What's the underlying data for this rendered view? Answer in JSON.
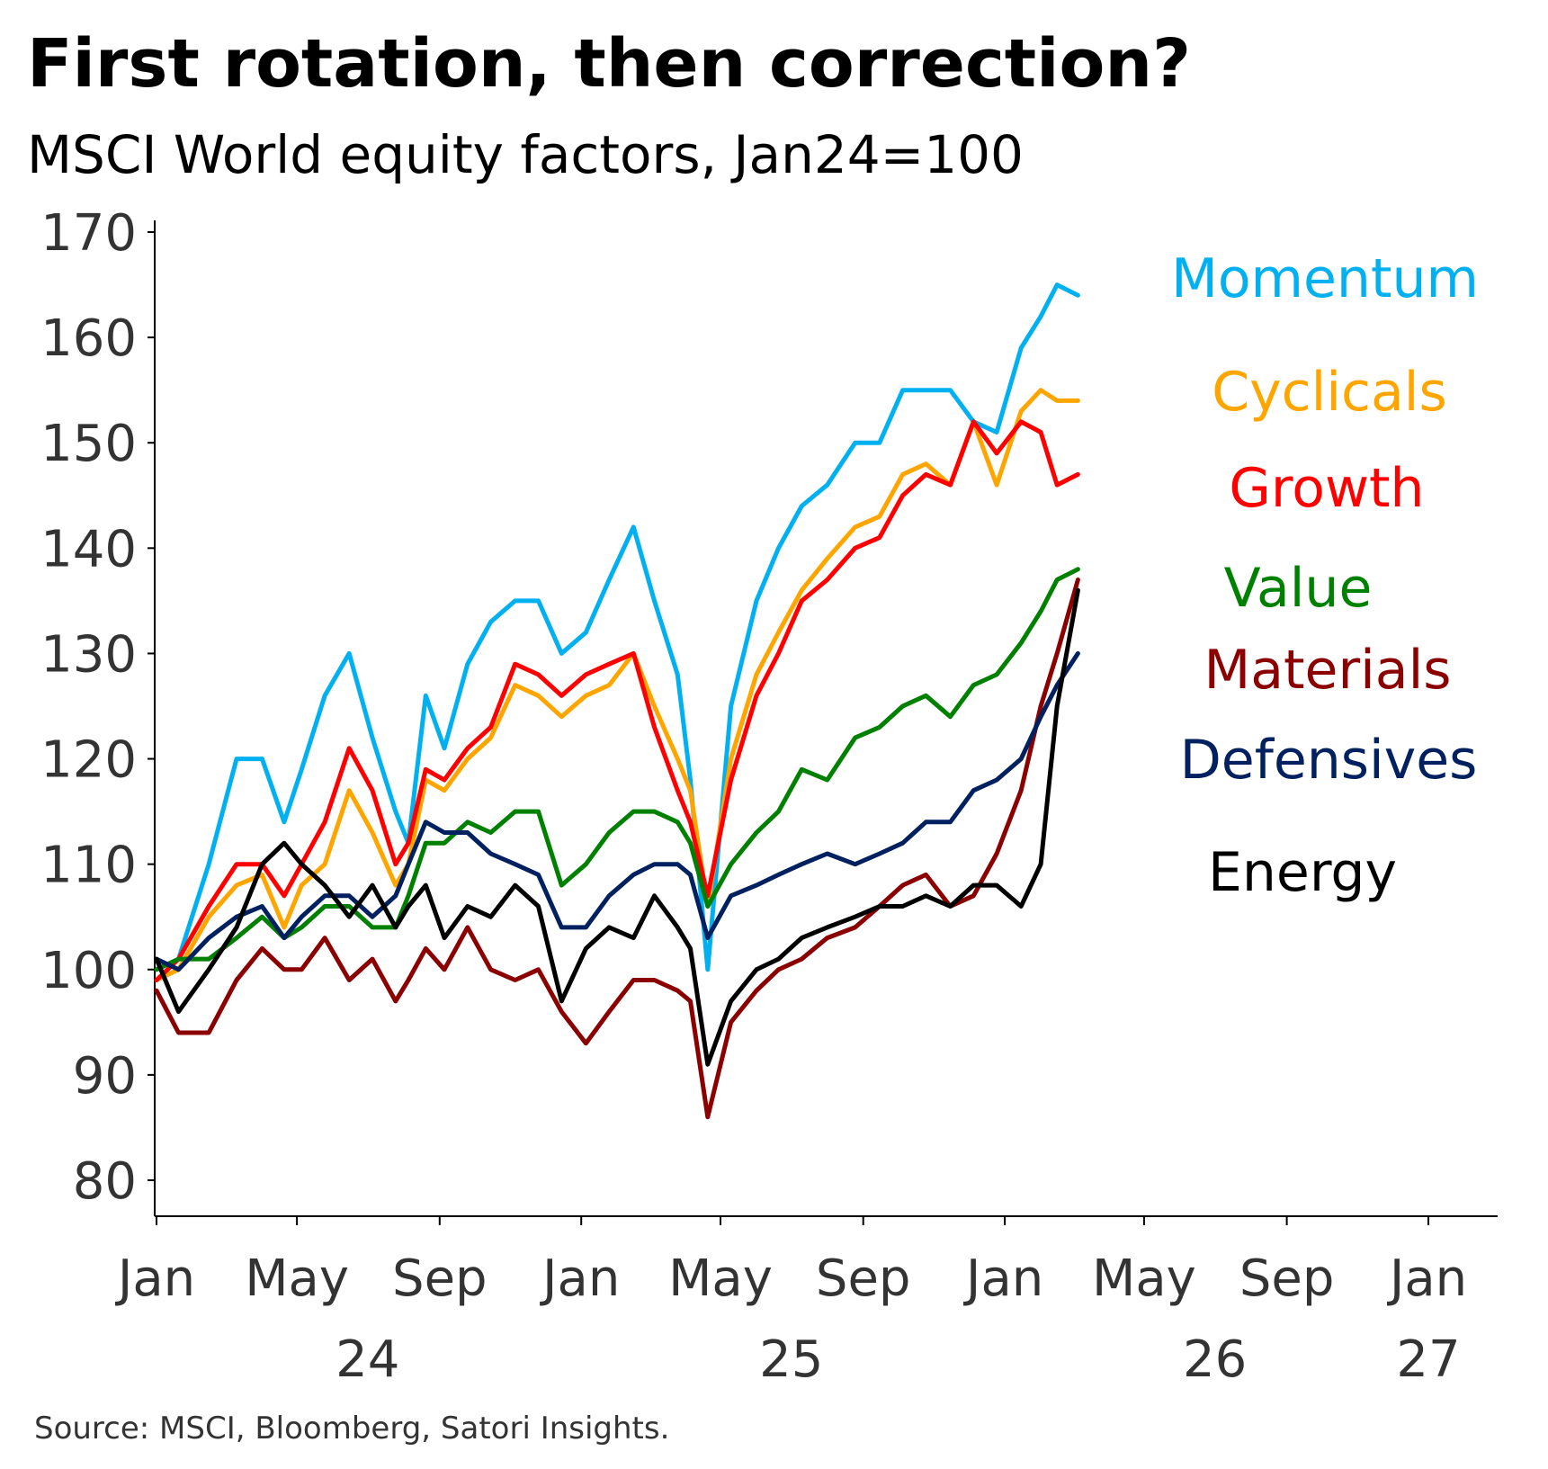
{
  "title": "First rotation, then correction?",
  "subtitle": "MSCI World equity factors, Jan24=100",
  "source": "Source: MSCI, Bloomberg, Satori Insights.",
  "chart_data": {
    "type": "line",
    "title": "First rotation, then correction?",
    "subtitle": "MSCI World equity factors, Jan24=100",
    "x_unit": "month",
    "x_range": [
      "2024-01",
      "2027-01"
    ],
    "ylim": [
      80,
      170
    ],
    "yticks": [
      170,
      160,
      150,
      140,
      130,
      120,
      110,
      100,
      90,
      80
    ],
    "ytick_labels": [
      "170",
      "160",
      "150",
      "140",
      "130",
      "120",
      "110",
      "100",
      "90",
      "80"
    ],
    "xticks": [
      "2024-01",
      "2024-05",
      "2024-09",
      "2025-01",
      "2025-05",
      "2025-09",
      "2026-01",
      "2026-05",
      "2026-09",
      "2027-01"
    ],
    "xtick_labels": [
      "Jan",
      "May",
      "Sep",
      "Jan",
      "May",
      "Sep",
      "Jan",
      "May",
      "Sep",
      "Jan"
    ],
    "year_labels": [
      {
        "label": "24",
        "at": "2024-07"
      },
      {
        "label": "25",
        "at": "2025-07"
      },
      {
        "label": "26",
        "at": "2026-07"
      },
      {
        "label": "27",
        "at": "2027-01"
      }
    ],
    "grid": false,
    "legend": "right, inline labels",
    "series": [
      {
        "name": "Momentum",
        "color": "#00b0f0",
        "x": [
          "2024-01-01",
          "2024-01-20",
          "2024-02-15",
          "2024-03-10",
          "2024-04-01",
          "2024-04-20",
          "2024-05-05",
          "2024-05-25",
          "2024-06-15",
          "2024-07-05",
          "2024-07-25",
          "2024-08-05",
          "2024-08-20",
          "2024-09-05",
          "2024-09-25",
          "2024-10-15",
          "2024-11-05",
          "2024-11-25",
          "2024-12-15",
          "2025-01-05",
          "2025-01-25",
          "2025-02-15",
          "2025-03-05",
          "2025-03-25",
          "2025-04-05",
          "2025-04-20",
          "2025-05-10",
          "2025-06-01",
          "2025-06-20",
          "2025-07-10",
          "2025-08-01",
          "2025-08-25",
          "2025-09-15",
          "2025-10-05",
          "2025-10-25",
          "2025-11-15",
          "2025-12-05",
          "2025-12-25",
          "2026-01-15",
          "2026-02-01",
          "2026-02-15",
          "2026-03-05"
        ],
        "values": [
          100,
          101,
          110,
          120,
          120,
          114,
          119,
          126,
          130,
          122,
          115,
          112,
          126,
          121,
          129,
          133,
          135,
          135,
          130,
          132,
          137,
          142,
          135,
          128,
          118,
          100,
          125,
          135,
          140,
          144,
          146,
          150,
          150,
          155,
          155,
          155,
          152,
          151,
          159,
          162,
          165,
          164
        ]
      },
      {
        "name": "Cyclicals",
        "color": "#ffa500",
        "x": [
          "2024-01-01",
          "2024-01-20",
          "2024-02-15",
          "2024-03-10",
          "2024-04-01",
          "2024-04-20",
          "2024-05-05",
          "2024-05-25",
          "2024-06-15",
          "2024-07-05",
          "2024-07-25",
          "2024-08-05",
          "2024-08-20",
          "2024-09-05",
          "2024-09-25",
          "2024-10-15",
          "2024-11-05",
          "2024-11-25",
          "2024-12-15",
          "2025-01-05",
          "2025-01-25",
          "2025-02-15",
          "2025-03-05",
          "2025-03-25",
          "2025-04-05",
          "2025-04-20",
          "2025-05-10",
          "2025-06-01",
          "2025-06-20",
          "2025-07-10",
          "2025-08-01",
          "2025-08-25",
          "2025-09-15",
          "2025-10-05",
          "2025-10-25",
          "2025-11-15",
          "2025-12-05",
          "2025-12-25",
          "2026-01-15",
          "2026-02-01",
          "2026-02-15",
          "2026-03-05"
        ],
        "values": [
          99,
          100,
          105,
          108,
          109,
          104,
          108,
          110,
          117,
          113,
          108,
          110,
          118,
          117,
          120,
          122,
          127,
          126,
          124,
          126,
          127,
          130,
          125,
          120,
          117,
          106,
          120,
          128,
          132,
          136,
          139,
          142,
          143,
          147,
          148,
          146,
          152,
          146,
          153,
          155,
          154,
          154
        ]
      },
      {
        "name": "Growth",
        "color": "#ff0000",
        "x": [
          "2024-01-01",
          "2024-01-20",
          "2024-02-15",
          "2024-03-10",
          "2024-04-01",
          "2024-04-20",
          "2024-05-05",
          "2024-05-25",
          "2024-06-15",
          "2024-07-05",
          "2024-07-25",
          "2024-08-05",
          "2024-08-20",
          "2024-09-05",
          "2024-09-25",
          "2024-10-15",
          "2024-11-05",
          "2024-11-25",
          "2024-12-15",
          "2025-01-05",
          "2025-01-25",
          "2025-02-15",
          "2025-03-05",
          "2025-03-25",
          "2025-04-05",
          "2025-04-20",
          "2025-05-10",
          "2025-06-01",
          "2025-06-20",
          "2025-07-10",
          "2025-08-01",
          "2025-08-25",
          "2025-09-15",
          "2025-10-05",
          "2025-10-25",
          "2025-11-15",
          "2025-12-05",
          "2025-12-25",
          "2026-01-15",
          "2026-02-01",
          "2026-02-15",
          "2026-03-05"
        ],
        "values": [
          99,
          101,
          106,
          110,
          110,
          107,
          110,
          114,
          121,
          117,
          110,
          112,
          119,
          118,
          121,
          123,
          129,
          128,
          126,
          128,
          129,
          130,
          123,
          117,
          114,
          107,
          118,
          126,
          130,
          135,
          137,
          140,
          141,
          145,
          147,
          146,
          152,
          149,
          152,
          151,
          146,
          147
        ]
      },
      {
        "name": "Value",
        "color": "#008000",
        "x": [
          "2024-01-01",
          "2024-01-20",
          "2024-02-15",
          "2024-03-10",
          "2024-04-01",
          "2024-04-20",
          "2024-05-05",
          "2024-05-25",
          "2024-06-15",
          "2024-07-05",
          "2024-07-25",
          "2024-08-05",
          "2024-08-20",
          "2024-09-05",
          "2024-09-25",
          "2024-10-15",
          "2024-11-05",
          "2024-11-25",
          "2024-12-15",
          "2025-01-05",
          "2025-01-25",
          "2025-02-15",
          "2025-03-05",
          "2025-03-25",
          "2025-04-05",
          "2025-04-20",
          "2025-05-10",
          "2025-06-01",
          "2025-06-20",
          "2025-07-10",
          "2025-08-01",
          "2025-08-25",
          "2025-09-15",
          "2025-10-05",
          "2025-10-25",
          "2025-11-15",
          "2025-12-05",
          "2025-12-25",
          "2026-01-15",
          "2026-02-01",
          "2026-02-15",
          "2026-03-05"
        ],
        "values": [
          100,
          101,
          101,
          103,
          105,
          103,
          104,
          106,
          106,
          104,
          104,
          107,
          112,
          112,
          114,
          113,
          115,
          115,
          108,
          110,
          113,
          115,
          115,
          114,
          112,
          106,
          110,
          113,
          115,
          119,
          118,
          122,
          123,
          125,
          126,
          124,
          127,
          128,
          131,
          134,
          137,
          138
        ]
      },
      {
        "name": "Materials",
        "color": "#8b0000",
        "x": [
          "2024-01-01",
          "2024-01-20",
          "2024-02-15",
          "2024-03-10",
          "2024-04-01",
          "2024-04-20",
          "2024-05-05",
          "2024-05-25",
          "2024-06-15",
          "2024-07-05",
          "2024-07-25",
          "2024-08-05",
          "2024-08-20",
          "2024-09-05",
          "2024-09-25",
          "2024-10-15",
          "2024-11-05",
          "2024-11-25",
          "2024-12-15",
          "2025-01-05",
          "2025-01-25",
          "2025-02-15",
          "2025-03-05",
          "2025-03-25",
          "2025-04-05",
          "2025-04-20",
          "2025-05-10",
          "2025-06-01",
          "2025-06-20",
          "2025-07-10",
          "2025-08-01",
          "2025-08-25",
          "2025-09-15",
          "2025-10-05",
          "2025-10-25",
          "2025-11-15",
          "2025-12-05",
          "2025-12-25",
          "2026-01-15",
          "2026-02-01",
          "2026-02-15",
          "2026-03-05"
        ],
        "values": [
          98,
          94,
          94,
          99,
          102,
          100,
          100,
          103,
          99,
          101,
          97,
          99,
          102,
          100,
          104,
          100,
          99,
          100,
          96,
          93,
          96,
          99,
          99,
          98,
          97,
          86,
          95,
          98,
          100,
          101,
          103,
          104,
          106,
          108,
          109,
          106,
          107,
          111,
          117,
          125,
          130,
          137
        ]
      },
      {
        "name": "Defensives",
        "color": "#002060",
        "x": [
          "2024-01-01",
          "2024-01-20",
          "2024-02-15",
          "2024-03-10",
          "2024-04-01",
          "2024-04-20",
          "2024-05-05",
          "2024-05-25",
          "2024-06-15",
          "2024-07-05",
          "2024-07-25",
          "2024-08-05",
          "2024-08-20",
          "2024-09-05",
          "2024-09-25",
          "2024-10-15",
          "2024-11-05",
          "2024-11-25",
          "2024-12-15",
          "2025-01-05",
          "2025-01-25",
          "2025-02-15",
          "2025-03-05",
          "2025-03-25",
          "2025-04-05",
          "2025-04-20",
          "2025-05-10",
          "2025-06-01",
          "2025-06-20",
          "2025-07-10",
          "2025-08-01",
          "2025-08-25",
          "2025-09-15",
          "2025-10-05",
          "2025-10-25",
          "2025-11-15",
          "2025-12-05",
          "2025-12-25",
          "2026-01-15",
          "2026-02-01",
          "2026-02-15",
          "2026-03-05"
        ],
        "values": [
          101,
          100,
          103,
          105,
          106,
          103,
          105,
          107,
          107,
          105,
          107,
          110,
          114,
          113,
          113,
          111,
          110,
          109,
          104,
          104,
          107,
          109,
          110,
          110,
          109,
          103,
          107,
          108,
          109,
          110,
          111,
          110,
          111,
          112,
          114,
          114,
          117,
          118,
          120,
          124,
          127,
          130
        ]
      },
      {
        "name": "Energy",
        "color": "#000000",
        "x": [
          "2024-01-01",
          "2024-01-20",
          "2024-02-15",
          "2024-03-10",
          "2024-04-01",
          "2024-04-20",
          "2024-05-05",
          "2024-05-25",
          "2024-06-15",
          "2024-07-05",
          "2024-07-25",
          "2024-08-05",
          "2024-08-20",
          "2024-09-05",
          "2024-09-25",
          "2024-10-15",
          "2024-11-05",
          "2024-11-25",
          "2024-12-15",
          "2025-01-05",
          "2025-01-25",
          "2025-02-15",
          "2025-03-05",
          "2025-03-25",
          "2025-04-05",
          "2025-04-20",
          "2025-05-10",
          "2025-06-01",
          "2025-06-20",
          "2025-07-10",
          "2025-08-01",
          "2025-08-25",
          "2025-09-15",
          "2025-10-05",
          "2025-10-25",
          "2025-11-15",
          "2025-12-05",
          "2025-12-25",
          "2026-01-15",
          "2026-02-01",
          "2026-02-15",
          "2026-03-05"
        ],
        "values": [
          101,
          96,
          100,
          104,
          110,
          112,
          110,
          108,
          105,
          108,
          104,
          106,
          108,
          103,
          106,
          105,
          108,
          106,
          97,
          102,
          104,
          103,
          107,
          104,
          102,
          91,
          97,
          100,
          101,
          103,
          104,
          105,
          106,
          106,
          107,
          106,
          108,
          108,
          106,
          110,
          125,
          136
        ]
      }
    ]
  }
}
